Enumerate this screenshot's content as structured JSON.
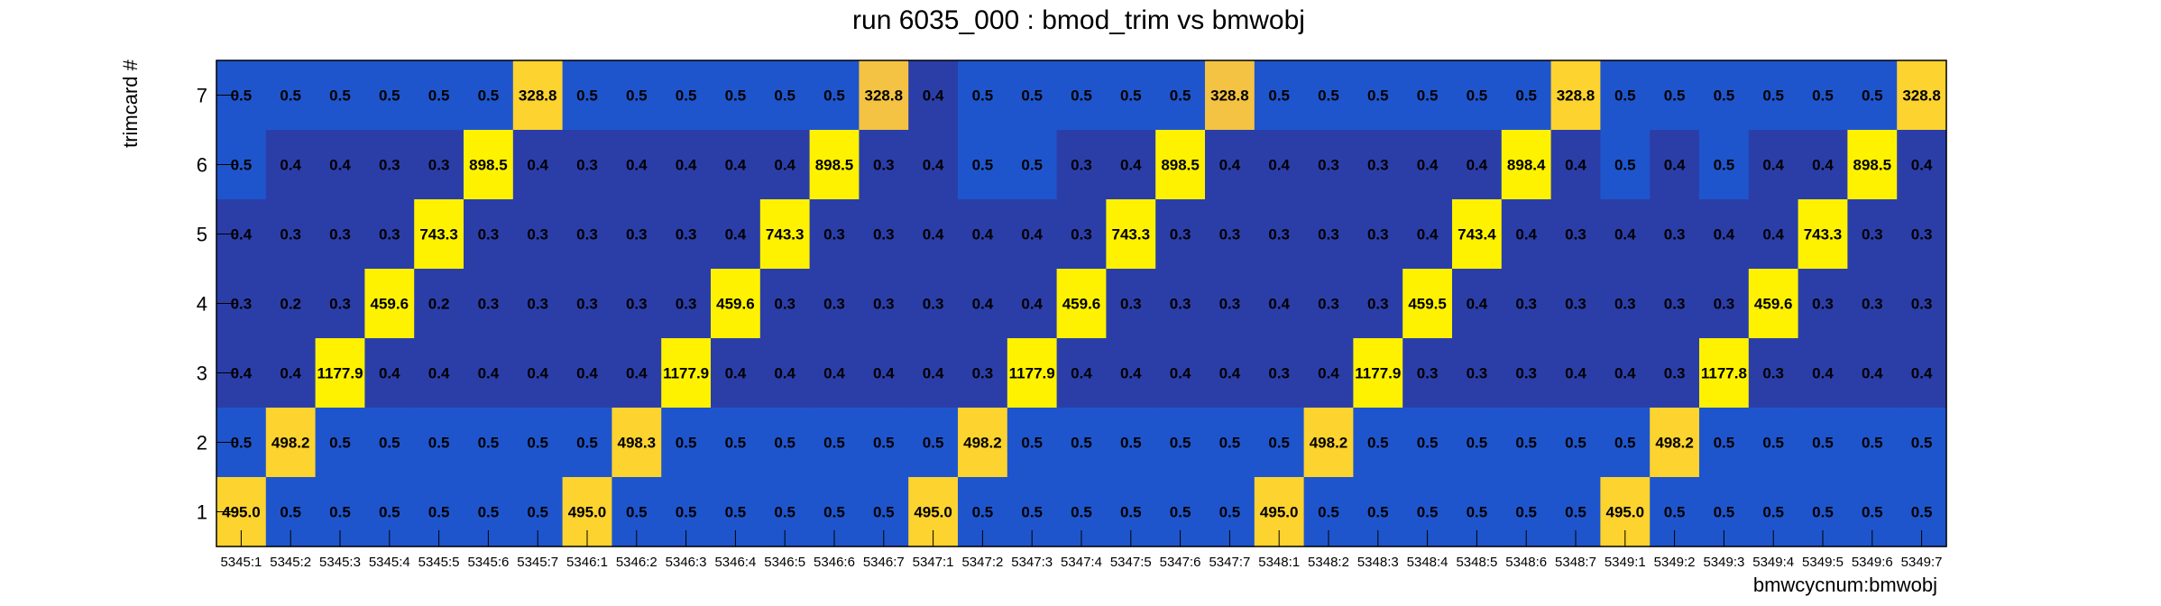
{
  "chart_data": {
    "type": "heatmap",
    "title": "run 6035_000 : bmod_trim vs bmwobj",
    "xlabel": "bmwcycnum:bmwobj",
    "ylabel": "trimcard #",
    "x_categories": [
      "5345:1",
      "5345:2",
      "5345:3",
      "5345:4",
      "5345:5",
      "5345:6",
      "5345:7",
      "5346:1",
      "5346:2",
      "5346:3",
      "5346:4",
      "5346:5",
      "5346:6",
      "5346:7",
      "5347:1",
      "5347:2",
      "5347:3",
      "5347:4",
      "5347:5",
      "5347:6",
      "5347:7",
      "5348:1",
      "5348:2",
      "5348:3",
      "5348:4",
      "5348:5",
      "5348:6",
      "5348:7",
      "5349:1",
      "5349:2",
      "5349:3",
      "5349:4",
      "5349:5",
      "5349:6",
      "5349:7"
    ],
    "y_categories": [
      "1",
      "2",
      "3",
      "4",
      "5",
      "6",
      "7"
    ],
    "rows": [
      {
        "y": "7",
        "labels": [
          "0.5",
          "0.5",
          "0.5",
          "0.5",
          "0.5",
          "0.5",
          "328.8",
          "0.5",
          "0.5",
          "0.5",
          "0.5",
          "0.5",
          "0.5",
          "328.8",
          "0.4",
          "0.5",
          "0.5",
          "0.5",
          "0.5",
          "0.5",
          "328.8",
          "0.5",
          "0.5",
          "0.5",
          "0.5",
          "0.5",
          "0.5",
          "328.8",
          "0.5",
          "0.5",
          "0.5",
          "0.5",
          "0.5",
          "0.5",
          "328.8"
        ]
      },
      {
        "y": "6",
        "labels": [
          "0.5",
          "0.4",
          "0.4",
          "0.3",
          "0.3",
          "898.5",
          "0.4",
          "0.3",
          "0.4",
          "0.4",
          "0.4",
          "0.4",
          "898.5",
          "0.3",
          "0.4",
          "0.5",
          "0.5",
          "0.3",
          "0.4",
          "898.5",
          "0.4",
          "0.4",
          "0.3",
          "0.3",
          "0.4",
          "0.4",
          "898.4",
          "0.4",
          "0.5",
          "0.4",
          "0.5",
          "0.4",
          "0.4",
          "898.5",
          "0.4"
        ]
      },
      {
        "y": "5",
        "labels": [
          "0.4",
          "0.3",
          "0.3",
          "0.3",
          "743.3",
          "0.3",
          "0.3",
          "0.3",
          "0.3",
          "0.3",
          "0.4",
          "743.3",
          "0.3",
          "0.3",
          "0.4",
          "0.4",
          "0.4",
          "0.3",
          "743.3",
          "0.3",
          "0.3",
          "0.3",
          "0.3",
          "0.3",
          "0.4",
          "743.4",
          "0.4",
          "0.3",
          "0.4",
          "0.3",
          "0.4",
          "0.4",
          "743.3",
          "0.3",
          "0.3"
        ]
      },
      {
        "y": "4",
        "labels": [
          "0.3",
          "0.2",
          "0.3",
          "459.6",
          "0.2",
          "0.3",
          "0.3",
          "0.3",
          "0.3",
          "0.3",
          "459.6",
          "0.3",
          "0.3",
          "0.3",
          "0.3",
          "0.4",
          "0.4",
          "459.6",
          "0.3",
          "0.3",
          "0.3",
          "0.4",
          "0.3",
          "0.3",
          "459.5",
          "0.4",
          "0.3",
          "0.3",
          "0.3",
          "0.3",
          "0.3",
          "459.6",
          "0.3",
          "0.3",
          "0.3"
        ]
      },
      {
        "y": "3",
        "labels": [
          "0.4",
          "0.4",
          "1177.9",
          "0.4",
          "0.4",
          "0.4",
          "0.4",
          "0.4",
          "0.4",
          "1177.9",
          "0.4",
          "0.4",
          "0.4",
          "0.4",
          "0.4",
          "0.3",
          "1177.9",
          "0.4",
          "0.4",
          "0.4",
          "0.4",
          "0.3",
          "0.4",
          "1177.9",
          "0.3",
          "0.3",
          "0.3",
          "0.4",
          "0.4",
          "0.3",
          "1177.8",
          "0.3",
          "0.4",
          "0.4",
          "0.4"
        ]
      },
      {
        "y": "2",
        "labels": [
          "0.5",
          "498.2",
          "0.5",
          "0.5",
          "0.5",
          "0.5",
          "0.5",
          "0.5",
          "498.3",
          "0.5",
          "0.5",
          "0.5",
          "0.5",
          "0.5",
          "0.5",
          "498.2",
          "0.5",
          "0.5",
          "0.5",
          "0.5",
          "0.5",
          "0.5",
          "498.2",
          "0.5",
          "0.5",
          "0.5",
          "0.5",
          "0.5",
          "0.5",
          "498.2",
          "0.5",
          "0.5",
          "0.5",
          "0.5",
          "0.5"
        ]
      },
      {
        "y": "1",
        "labels": [
          "495.0",
          "0.5",
          "0.5",
          "0.5",
          "0.5",
          "0.5",
          "0.5",
          "495.0",
          "0.5",
          "0.5",
          "0.5",
          "0.5",
          "0.5",
          "0.5",
          "495.0",
          "0.5",
          "0.5",
          "0.5",
          "0.5",
          "0.5",
          "0.5",
          "495.0",
          "0.5",
          "0.5",
          "0.5",
          "0.5",
          "0.5",
          "0.5",
          "495.0",
          "0.5",
          "0.5",
          "0.5",
          "0.5",
          "0.5",
          "0.5"
        ]
      }
    ],
    "colors": {
      "low": "#2b3ea8",
      "mid": "#1f55cc",
      "warm": "#f5c343",
      "hot": "#fff200",
      "hot_alt": "#fcd32f"
    },
    "color_scale": "per-bin content, low values blue, high values yellow",
    "grid": false,
    "legend": "none"
  }
}
